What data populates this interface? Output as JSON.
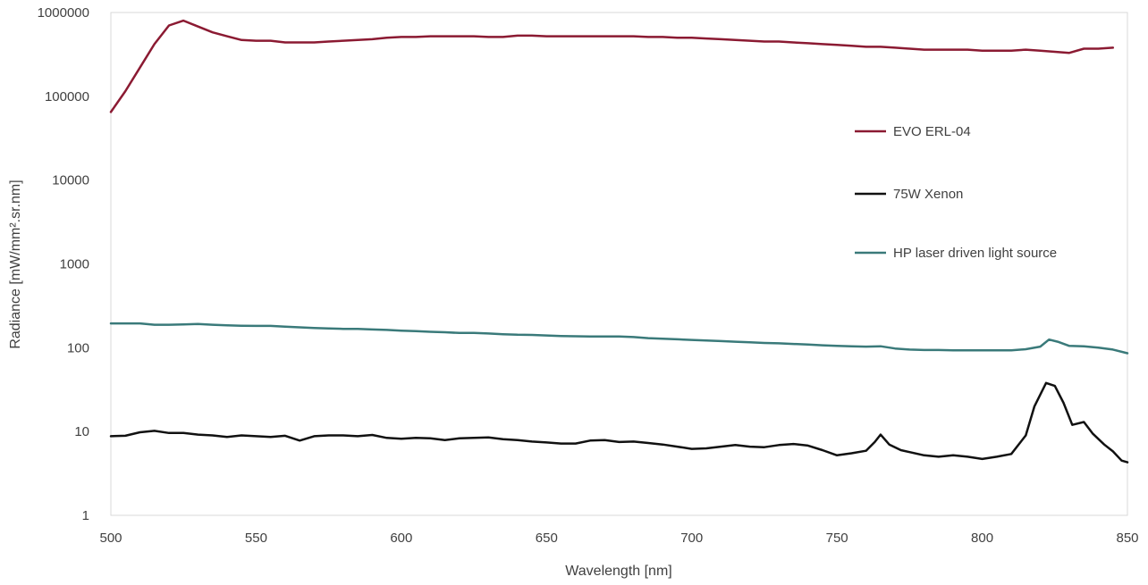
{
  "chart_data": {
    "type": "line",
    "xlabel": "Wavelength [nm]",
    "ylabel": "Radiance  [mW/mm².sr.nm]",
    "xlim": [
      500,
      850
    ],
    "ylim": [
      1,
      1000000
    ],
    "yscale": "log",
    "x_ticks": [
      500,
      550,
      600,
      650,
      700,
      750,
      800,
      850
    ],
    "y_ticks": [
      1,
      10,
      100,
      1000,
      10000,
      100000,
      1000000
    ],
    "x_tick_labels": [
      "500",
      "550",
      "600",
      "650",
      "700",
      "750",
      "800",
      "850"
    ],
    "y_tick_labels": [
      "1",
      "10",
      "100",
      "1000",
      "10000",
      "100000",
      "1000000"
    ],
    "grid": false,
    "legend_position": "right",
    "series": [
      {
        "name": "EVO ERL-04",
        "color": "#8b1a32",
        "points": [
          [
            500,
            65000
          ],
          [
            505,
            115000
          ],
          [
            510,
            220000
          ],
          [
            515,
            420000
          ],
          [
            520,
            700000
          ],
          [
            525,
            800000
          ],
          [
            530,
            680000
          ],
          [
            535,
            580000
          ],
          [
            540,
            520000
          ],
          [
            545,
            470000
          ],
          [
            550,
            460000
          ],
          [
            555,
            460000
          ],
          [
            560,
            440000
          ],
          [
            565,
            440000
          ],
          [
            570,
            440000
          ],
          [
            575,
            450000
          ],
          [
            580,
            460000
          ],
          [
            585,
            470000
          ],
          [
            590,
            480000
          ],
          [
            595,
            500000
          ],
          [
            600,
            510000
          ],
          [
            605,
            510000
          ],
          [
            610,
            520000
          ],
          [
            615,
            520000
          ],
          [
            620,
            520000
          ],
          [
            625,
            520000
          ],
          [
            630,
            510000
          ],
          [
            635,
            510000
          ],
          [
            640,
            530000
          ],
          [
            645,
            530000
          ],
          [
            650,
            520000
          ],
          [
            655,
            520000
          ],
          [
            660,
            520000
          ],
          [
            665,
            520000
          ],
          [
            670,
            520000
          ],
          [
            675,
            520000
          ],
          [
            680,
            520000
          ],
          [
            685,
            510000
          ],
          [
            690,
            510000
          ],
          [
            695,
            500000
          ],
          [
            700,
            500000
          ],
          [
            705,
            490000
          ],
          [
            710,
            480000
          ],
          [
            715,
            470000
          ],
          [
            720,
            460000
          ],
          [
            725,
            450000
          ],
          [
            730,
            450000
          ],
          [
            735,
            440000
          ],
          [
            740,
            430000
          ],
          [
            745,
            420000
          ],
          [
            750,
            410000
          ],
          [
            755,
            400000
          ],
          [
            760,
            390000
          ],
          [
            765,
            390000
          ],
          [
            770,
            380000
          ],
          [
            775,
            370000
          ],
          [
            780,
            360000
          ],
          [
            785,
            360000
          ],
          [
            790,
            360000
          ],
          [
            795,
            360000
          ],
          [
            800,
            350000
          ],
          [
            805,
            350000
          ],
          [
            810,
            350000
          ],
          [
            815,
            360000
          ],
          [
            820,
            350000
          ],
          [
            825,
            340000
          ],
          [
            830,
            330000
          ],
          [
            835,
            370000
          ],
          [
            840,
            370000
          ],
          [
            845,
            380000
          ]
        ]
      },
      {
        "name": "75W Xenon",
        "color": "#111111",
        "points": [
          [
            500,
            8.8
          ],
          [
            505,
            8.9
          ],
          [
            510,
            9.8
          ],
          [
            515,
            10.2
          ],
          [
            520,
            9.6
          ],
          [
            525,
            9.6
          ],
          [
            530,
            9.2
          ],
          [
            535,
            9.0
          ],
          [
            540,
            8.6
          ],
          [
            545,
            9.0
          ],
          [
            550,
            8.8
          ],
          [
            555,
            8.6
          ],
          [
            560,
            8.9
          ],
          [
            565,
            7.8
          ],
          [
            570,
            8.8
          ],
          [
            575,
            9.0
          ],
          [
            580,
            9.0
          ],
          [
            585,
            8.8
          ],
          [
            590,
            9.1
          ],
          [
            595,
            8.4
          ],
          [
            600,
            8.2
          ],
          [
            605,
            8.4
          ],
          [
            610,
            8.3
          ],
          [
            615,
            7.9
          ],
          [
            620,
            8.3
          ],
          [
            625,
            8.4
          ],
          [
            630,
            8.5
          ],
          [
            635,
            8.1
          ],
          [
            640,
            7.9
          ],
          [
            645,
            7.6
          ],
          [
            650,
            7.4
          ],
          [
            655,
            7.2
          ],
          [
            660,
            7.2
          ],
          [
            665,
            7.8
          ],
          [
            670,
            7.9
          ],
          [
            675,
            7.5
          ],
          [
            680,
            7.6
          ],
          [
            685,
            7.3
          ],
          [
            690,
            7.0
          ],
          [
            695,
            6.6
          ],
          [
            700,
            6.2
          ],
          [
            705,
            6.3
          ],
          [
            710,
            6.6
          ],
          [
            715,
            6.9
          ],
          [
            720,
            6.6
          ],
          [
            725,
            6.5
          ],
          [
            730,
            6.9
          ],
          [
            735,
            7.1
          ],
          [
            740,
            6.8
          ],
          [
            745,
            6.0
          ],
          [
            750,
            5.2
          ],
          [
            755,
            5.5
          ],
          [
            760,
            5.9
          ],
          [
            763,
            7.5
          ],
          [
            765,
            9.2
          ],
          [
            768,
            7.0
          ],
          [
            772,
            6.0
          ],
          [
            780,
            5.2
          ],
          [
            785,
            5.0
          ],
          [
            790,
            5.2
          ],
          [
            795,
            5.0
          ],
          [
            800,
            4.7
          ],
          [
            805,
            5.0
          ],
          [
            810,
            5.4
          ],
          [
            815,
            9.0
          ],
          [
            818,
            20
          ],
          [
            822,
            38
          ],
          [
            825,
            35
          ],
          [
            828,
            22
          ],
          [
            831,
            12
          ],
          [
            835,
            13
          ],
          [
            838,
            9.5
          ],
          [
            842,
            7.0
          ],
          [
            845,
            5.8
          ],
          [
            848,
            4.5
          ],
          [
            850,
            4.3
          ]
        ]
      },
      {
        "name": "HP laser driven light source",
        "color": "#3a7a7a",
        "points": [
          [
            500,
            195
          ],
          [
            505,
            195
          ],
          [
            510,
            195
          ],
          [
            515,
            188
          ],
          [
            520,
            188
          ],
          [
            525,
            190
          ],
          [
            530,
            192
          ],
          [
            535,
            188
          ],
          [
            540,
            185
          ],
          [
            545,
            183
          ],
          [
            550,
            182
          ],
          [
            555,
            182
          ],
          [
            560,
            178
          ],
          [
            565,
            175
          ],
          [
            570,
            172
          ],
          [
            575,
            170
          ],
          [
            580,
            168
          ],
          [
            585,
            168
          ],
          [
            590,
            165
          ],
          [
            595,
            163
          ],
          [
            600,
            160
          ],
          [
            605,
            158
          ],
          [
            610,
            155
          ],
          [
            615,
            153
          ],
          [
            620,
            150
          ],
          [
            625,
            150
          ],
          [
            630,
            148
          ],
          [
            635,
            145
          ],
          [
            640,
            143
          ],
          [
            645,
            142
          ],
          [
            650,
            140
          ],
          [
            655,
            138
          ],
          [
            660,
            137
          ],
          [
            665,
            136
          ],
          [
            670,
            136
          ],
          [
            675,
            136
          ],
          [
            680,
            134
          ],
          [
            685,
            130
          ],
          [
            690,
            128
          ],
          [
            695,
            126
          ],
          [
            700,
            124
          ],
          [
            705,
            122
          ],
          [
            710,
            120
          ],
          [
            715,
            118
          ],
          [
            720,
            116
          ],
          [
            725,
            114
          ],
          [
            730,
            113
          ],
          [
            735,
            111
          ],
          [
            740,
            109
          ],
          [
            745,
            107
          ],
          [
            750,
            105
          ],
          [
            755,
            104
          ],
          [
            760,
            103
          ],
          [
            765,
            104
          ],
          [
            770,
            98
          ],
          [
            775,
            95
          ],
          [
            780,
            94
          ],
          [
            785,
            94
          ],
          [
            790,
            93
          ],
          [
            795,
            93
          ],
          [
            800,
            93
          ],
          [
            805,
            93
          ],
          [
            810,
            93
          ],
          [
            815,
            96
          ],
          [
            820,
            103
          ],
          [
            823,
            125
          ],
          [
            826,
            118
          ],
          [
            830,
            105
          ],
          [
            835,
            104
          ],
          [
            840,
            100
          ],
          [
            845,
            95
          ],
          [
            850,
            86
          ]
        ]
      }
    ]
  }
}
